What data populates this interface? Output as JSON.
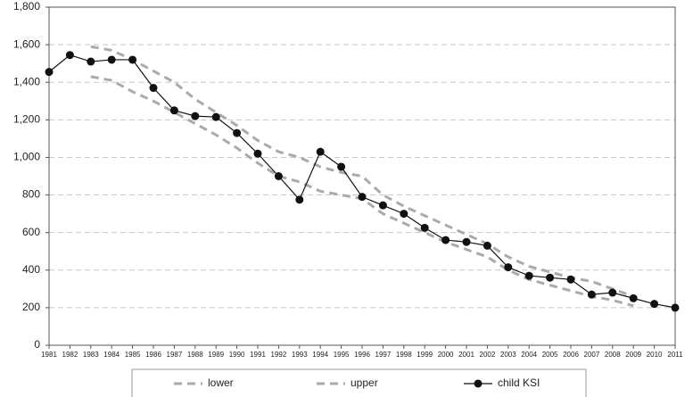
{
  "chart_data": {
    "type": "line",
    "categories": [
      "1981",
      "1982",
      "1983",
      "1984",
      "1985",
      "1986",
      "1987",
      "1988",
      "1989",
      "1990",
      "1991",
      "1992",
      "1993",
      "1994",
      "1995",
      "1996",
      "1997",
      "1998",
      "1999",
      "2000",
      "2001",
      "2002",
      "2003",
      "2004",
      "2005",
      "2006",
      "2007",
      "2008",
      "2009",
      "2010",
      "2011"
    ],
    "series": [
      {
        "name": "lower",
        "color": "#aaaaaa",
        "dashed": true,
        "values": [
          null,
          null,
          1430,
          1410,
          1350,
          1300,
          1240,
          1180,
          1120,
          1050,
          970,
          900,
          870,
          820,
          800,
          780,
          700,
          650,
          600,
          550,
          510,
          470,
          400,
          350,
          320,
          290,
          260,
          240,
          210,
          null,
          null
        ]
      },
      {
        "name": "upper",
        "color": "#aaaaaa",
        "dashed": true,
        "values": [
          null,
          null,
          1590,
          1570,
          1520,
          1460,
          1400,
          1310,
          1240,
          1170,
          1090,
          1030,
          1000,
          950,
          920,
          900,
          800,
          740,
          690,
          640,
          590,
          540,
          470,
          420,
          390,
          360,
          340,
          300,
          260,
          null,
          null
        ]
      },
      {
        "name": "child KSI",
        "color": "#111111",
        "dashed": false,
        "markers": true,
        "values": [
          1455,
          1545,
          1510,
          1520,
          1520,
          1370,
          1250,
          1220,
          1215,
          1130,
          1020,
          900,
          775,
          1030,
          950,
          790,
          745,
          700,
          625,
          560,
          550,
          530,
          415,
          370,
          360,
          350,
          270,
          280,
          250,
          220,
          200
        ]
      }
    ],
    "ylim": [
      0,
      1800
    ],
    "yticks": [
      0,
      {
        "value": 200,
        "label": "200"
      },
      {
        "value": 400,
        "label": "400"
      },
      {
        "value": 600,
        "label": "600"
      },
      {
        "value": 800,
        "label": "800"
      },
      {
        "value": 1000,
        "label": "1,000"
      },
      {
        "value": 1200,
        "label": "1,200"
      },
      {
        "value": 1400,
        "label": "1,400"
      },
      {
        "value": 1600,
        "label": "1,600"
      },
      {
        "value": 1800,
        "label": "1,800"
      }
    ],
    "grid": true,
    "legend": "bottom"
  }
}
